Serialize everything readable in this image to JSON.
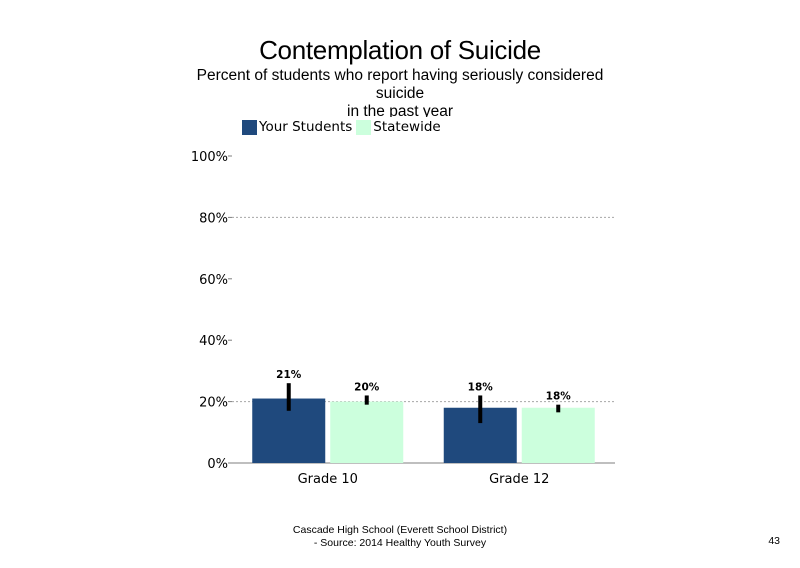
{
  "slide": {
    "title": "Contemplation of Suicide",
    "subtitle": "Percent of students  who report having seriously considered suicide\nin the past year",
    "footer_line1": "Cascade High School (Everett School District)",
    "footer_line2": "- Source: 2014 Healthy Youth Survey",
    "page_number": "43"
  },
  "chart_data": {
    "type": "bar",
    "title": "Contemplation of Suicide",
    "subtitle": "Percent of students  who report having seriously considered suicide in the past year",
    "categories": [
      "Grade 10",
      "Grade 12"
    ],
    "series": [
      {
        "name": "Your Students",
        "color": "#1f497d",
        "values": [
          21,
          18
        ],
        "labels": [
          "21%",
          "18%"
        ],
        "error_low": [
          17,
          13
        ],
        "error_high": [
          26,
          22
        ]
      },
      {
        "name": "Statewide",
        "color": "#ccffdd",
        "values": [
          20,
          18
        ],
        "labels": [
          "20%",
          "18%"
        ],
        "error_low": [
          19,
          16.5
        ],
        "error_high": [
          22,
          19
        ]
      }
    ],
    "ylim": [
      0,
      100
    ],
    "yticks": [
      0,
      20,
      40,
      60,
      80,
      100
    ],
    "ytick_labels": [
      "0%",
      "20%",
      "40%",
      "60%",
      "80%",
      "100%"
    ],
    "gridlines": [
      20,
      80
    ],
    "legend_position": "top-left",
    "xlabel": "",
    "ylabel": ""
  }
}
